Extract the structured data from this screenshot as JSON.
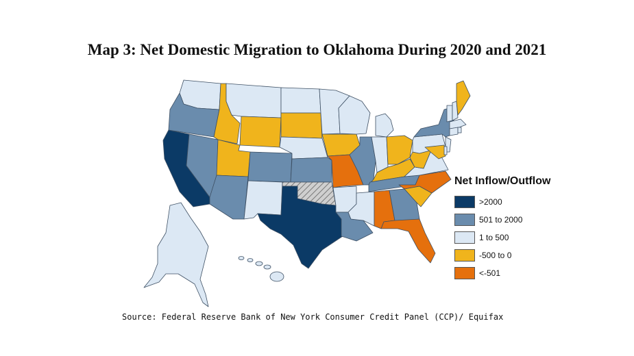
{
  "title": "Map 3: Net Domestic Migration to Oklahoma During 2020 and 2021",
  "source": "Source: Federal Reserve Bank of New York Consumer Credit Panel (CCP)/ Equifax",
  "legend": {
    "title": "Net Inflow/Outflow",
    "items": [
      {
        "key": "c1",
        "label": ">2000",
        "color": "#0b3a66"
      },
      {
        "key": "c2",
        "label": "501 to 2000",
        "color": "#6a8cad"
      },
      {
        "key": "c3",
        "label": "1 to 500",
        "color": "#dce8f4"
      },
      {
        "key": "c4",
        "label": "-500 to 0",
        "color": "#f0b41c"
      },
      {
        "key": "c5",
        "label": "<-501",
        "color": "#e5700d"
      }
    ]
  },
  "states": {
    "WA": "c3",
    "OR": "c2",
    "CA": "c1",
    "NV": "c2",
    "ID": "c4",
    "MT": "c3",
    "WY": "c4",
    "UT": "c4",
    "AZ": "c2",
    "CO": "c2",
    "NM": "c3",
    "ND": "c3",
    "SD": "c4",
    "NE": "c3",
    "KS": "c2",
    "OK": "origin",
    "TX": "c1",
    "MN": "c3",
    "IA": "c4",
    "MO": "c5",
    "AR": "c3",
    "LA": "c2",
    "WI": "c3",
    "IL": "c2",
    "MI": "c3",
    "IN": "c3",
    "OH": "c4",
    "KY": "c4",
    "TN": "c2",
    "MS": "c3",
    "AL": "c5",
    "GA": "c2",
    "FL": "c5",
    "SC": "c4",
    "NC": "c5",
    "VA": "c3",
    "WV": "c4",
    "PA": "c3",
    "NY": "c2",
    "ME": "c4",
    "NJ": "c3",
    "MD": "c4",
    "AK": "c3",
    "HI": "c3"
  }
}
